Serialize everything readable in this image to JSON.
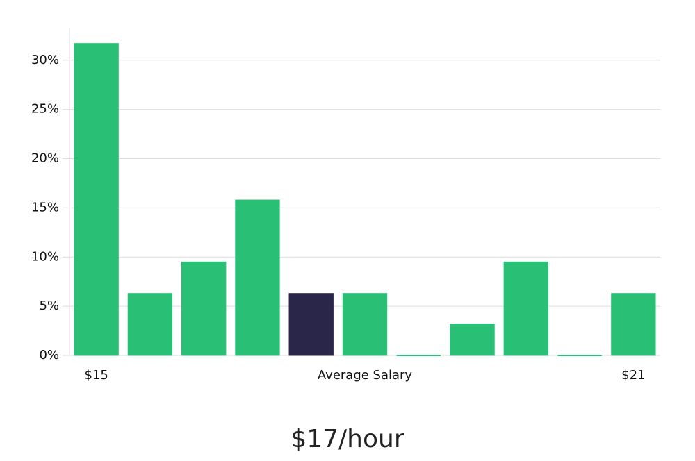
{
  "chart_data": {
    "type": "bar",
    "categories": [
      "$15",
      null,
      null,
      null,
      null,
      null,
      null,
      null,
      null,
      null,
      "$21"
    ],
    "values": [
      31.7,
      6.3,
      9.5,
      15.8,
      6.3,
      6.3,
      0,
      3.2,
      9.5,
      0,
      6.3
    ],
    "colors": [
      "#29c076",
      "#29c076",
      "#29c076",
      "#29c076",
      "#29264a",
      "#29c076",
      "#29c076",
      "#29c076",
      "#29c076",
      "#29c076",
      "#29c076"
    ],
    "x_label": "Average Salary",
    "caption": "$17/hour",
    "ylim": [
      0,
      33.3
    ],
    "yticks": [
      {
        "value": 0,
        "label": "0%"
      },
      {
        "value": 5,
        "label": "5%"
      },
      {
        "value": 10,
        "label": "10%"
      },
      {
        "value": 15,
        "label": "15%"
      },
      {
        "value": 20,
        "label": "20%"
      },
      {
        "value": 25,
        "label": "25%"
      },
      {
        "value": 30,
        "label": "30%"
      }
    ],
    "grid": true
  }
}
